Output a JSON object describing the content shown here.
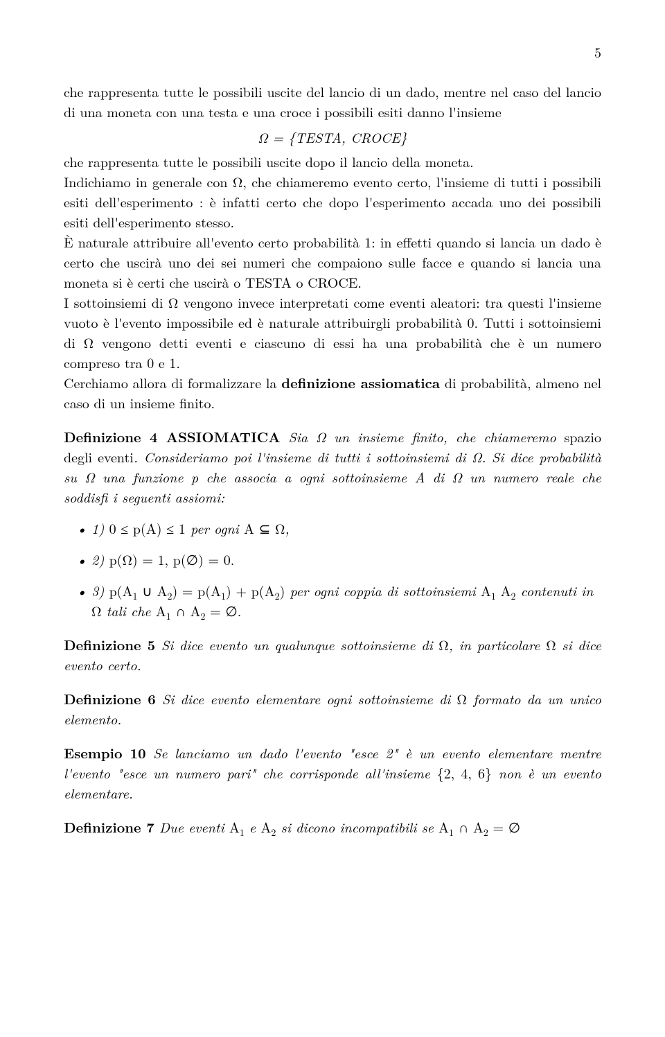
{
  "page": {
    "number": "5"
  },
  "intro": {
    "p1a": "che rappresenta tutte le possibili uscite del lancio di un dado, mentre nel caso del lancio di una moneta con una testa e una croce i possibili esiti danno l'insieme",
    "eq1": "Ω = {TESTA, CROCE}",
    "p1b": "che rappresenta tutte le possibili uscite dopo il lancio della moneta.",
    "p2": "Indichiamo in generale con Ω, che chiameremo evento certo, l'insieme di tutti i possibili esiti dell'esperimento : è infatti certo che dopo l'esperimento accada uno dei possibili esiti dell'esperimento stesso.",
    "p3": "È naturale attribuire all'evento certo probabilità 1: in effetti quando si lancia un dado è certo che uscirà uno dei sei numeri che compaiono sulle facce e quando si lancia una moneta si è certi che uscirà o TESTA o CROCE.",
    "p4": "I sottoinsiemi di Ω vengono invece interpretati come eventi aleatori: tra questi l'insieme vuoto è l'evento impossibile ed è naturale attribuirgli probabilità 0. Tutti i sottoinsiemi di Ω vengono detti eventi e ciascuno di essi ha una probabilità che è un numero compreso tra 0 e 1.",
    "p5a": "Cerchiamo allora di formalizzare la ",
    "p5b": "definizione assiomatica",
    "p5c": " di probabilità, almeno nel caso di un insieme finito."
  },
  "def4": {
    "label": "Definizione 4 ASSIOMATICA",
    "body_a": " Sia ",
    "body_b": " un insieme finito, che chiameremo ",
    "body_c": "spazio degli eventi",
    "body_d": ". Consideriamo poi l'insieme di tutti i sottoinsiemi di ",
    "body_e": ". Si dice probabilità su ",
    "body_f": " una funzione p che associa a ogni sottoinsieme A di ",
    "body_g": " un numero reale che soddisfi i seguenti assiomi:",
    "ax1_a": "1) ",
    "ax1_b": "0 ≤ p(A) ≤ 1",
    "ax1_c": " per ogni ",
    "ax1_d": "A ⊆ Ω",
    "ax1_e": ",",
    "ax2_a": "2) ",
    "ax2_b": "p(Ω) = 1,   p(∅) = 0.",
    "ax3_a": "3) ",
    "ax3_b": " per ogni coppia di sottoinsiemi ",
    "ax3_c": " contenuti in ",
    "ax3_d": " tali che "
  },
  "def5": {
    "label": "Definizione 5",
    "body_a": " Si dice evento un qualunque sottoinsieme di ",
    "body_b": ", in particolare ",
    "body_c": " si dice evento certo."
  },
  "def6": {
    "label": "Definizione 6",
    "body_a": " Si dice evento elementare ogni sottoinsieme di ",
    "body_b": " formato da un unico elemento."
  },
  "ex10": {
    "label": "Esempio 10",
    "body_a": " Se lanciamo un dado l'evento \"esce 2\" è un evento elementare mentre l'evento \"esce un numero pari\" che corrisponde all'insieme ",
    "body_b": "{2, 4, 6}",
    "body_c": " non è un evento elementare."
  },
  "def7": {
    "label": "Definizione 7",
    "body_a": " Due eventi ",
    "body_b": " e ",
    "body_c": " si dicono incompatibili se "
  },
  "sym": {
    "Omega": "Ω",
    "emptyset": "∅",
    "cup": "∪",
    "cap": "∩",
    "A1": "A",
    "A2": "A",
    "sub1": "1",
    "sub2": "2",
    "eq_empty": " = ∅",
    "eq_empty_period": " = ∅."
  }
}
